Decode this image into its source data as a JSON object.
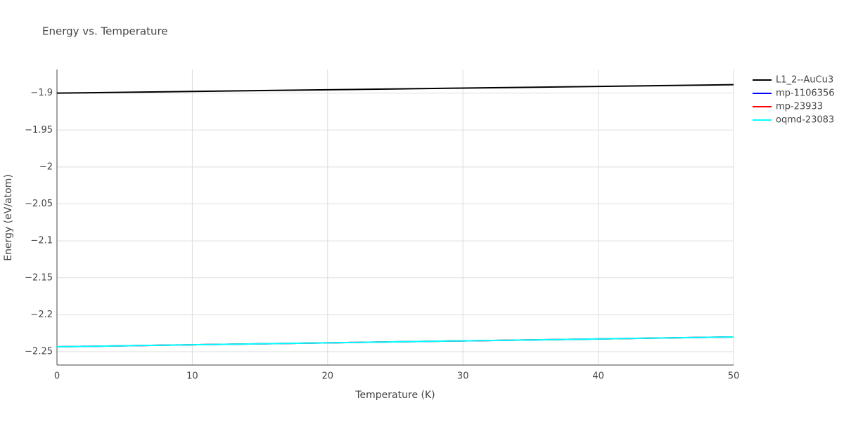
{
  "chart_data": {
    "type": "line",
    "title": "Energy vs. Temperature",
    "x_label": "Temperature (K)",
    "y_label": "Energy (eV/atom)",
    "x": [
      0,
      10,
      20,
      30,
      40,
      50
    ],
    "series": [
      {
        "name": "L1_2--AuCu3",
        "color": "#000000",
        "values": [
          -1.9,
          -1.8977,
          -1.8954,
          -1.8932,
          -1.8909,
          -1.8886
        ]
      },
      {
        "name": "mp-1106356",
        "color": "#0000ff",
        "values": [
          -2.2433,
          -2.2406,
          -2.238,
          -2.2353,
          -2.2327,
          -2.23
        ]
      },
      {
        "name": "mp-23933",
        "color": "#ff0000",
        "values": [
          -2.2433,
          -2.2406,
          -2.238,
          -2.2353,
          -2.2327,
          -2.23
        ]
      },
      {
        "name": "oqmd-23083",
        "color": "#00ffff",
        "values": [
          -2.2433,
          -2.2406,
          -2.238,
          -2.2353,
          -2.2327,
          -2.23
        ]
      }
    ],
    "xlim": [
      0,
      50
    ],
    "xticks": [
      0,
      10,
      20,
      30,
      40,
      50
    ],
    "ylim": [
      -2.268,
      -1.868
    ],
    "yticks": [
      {
        "value": -1.9,
        "label": "−1.9"
      },
      {
        "value": -1.95,
        "label": "−1.95"
      },
      {
        "value": -2,
        "label": "−2"
      },
      {
        "value": -2.05,
        "label": "−2.05"
      },
      {
        "value": -2.1,
        "label": "−2.1"
      },
      {
        "value": -2.15,
        "label": "−2.15"
      },
      {
        "value": -2.2,
        "label": "−2.2"
      },
      {
        "value": -2.25,
        "label": "−2.25"
      }
    ],
    "grid": true,
    "legend": "right"
  }
}
